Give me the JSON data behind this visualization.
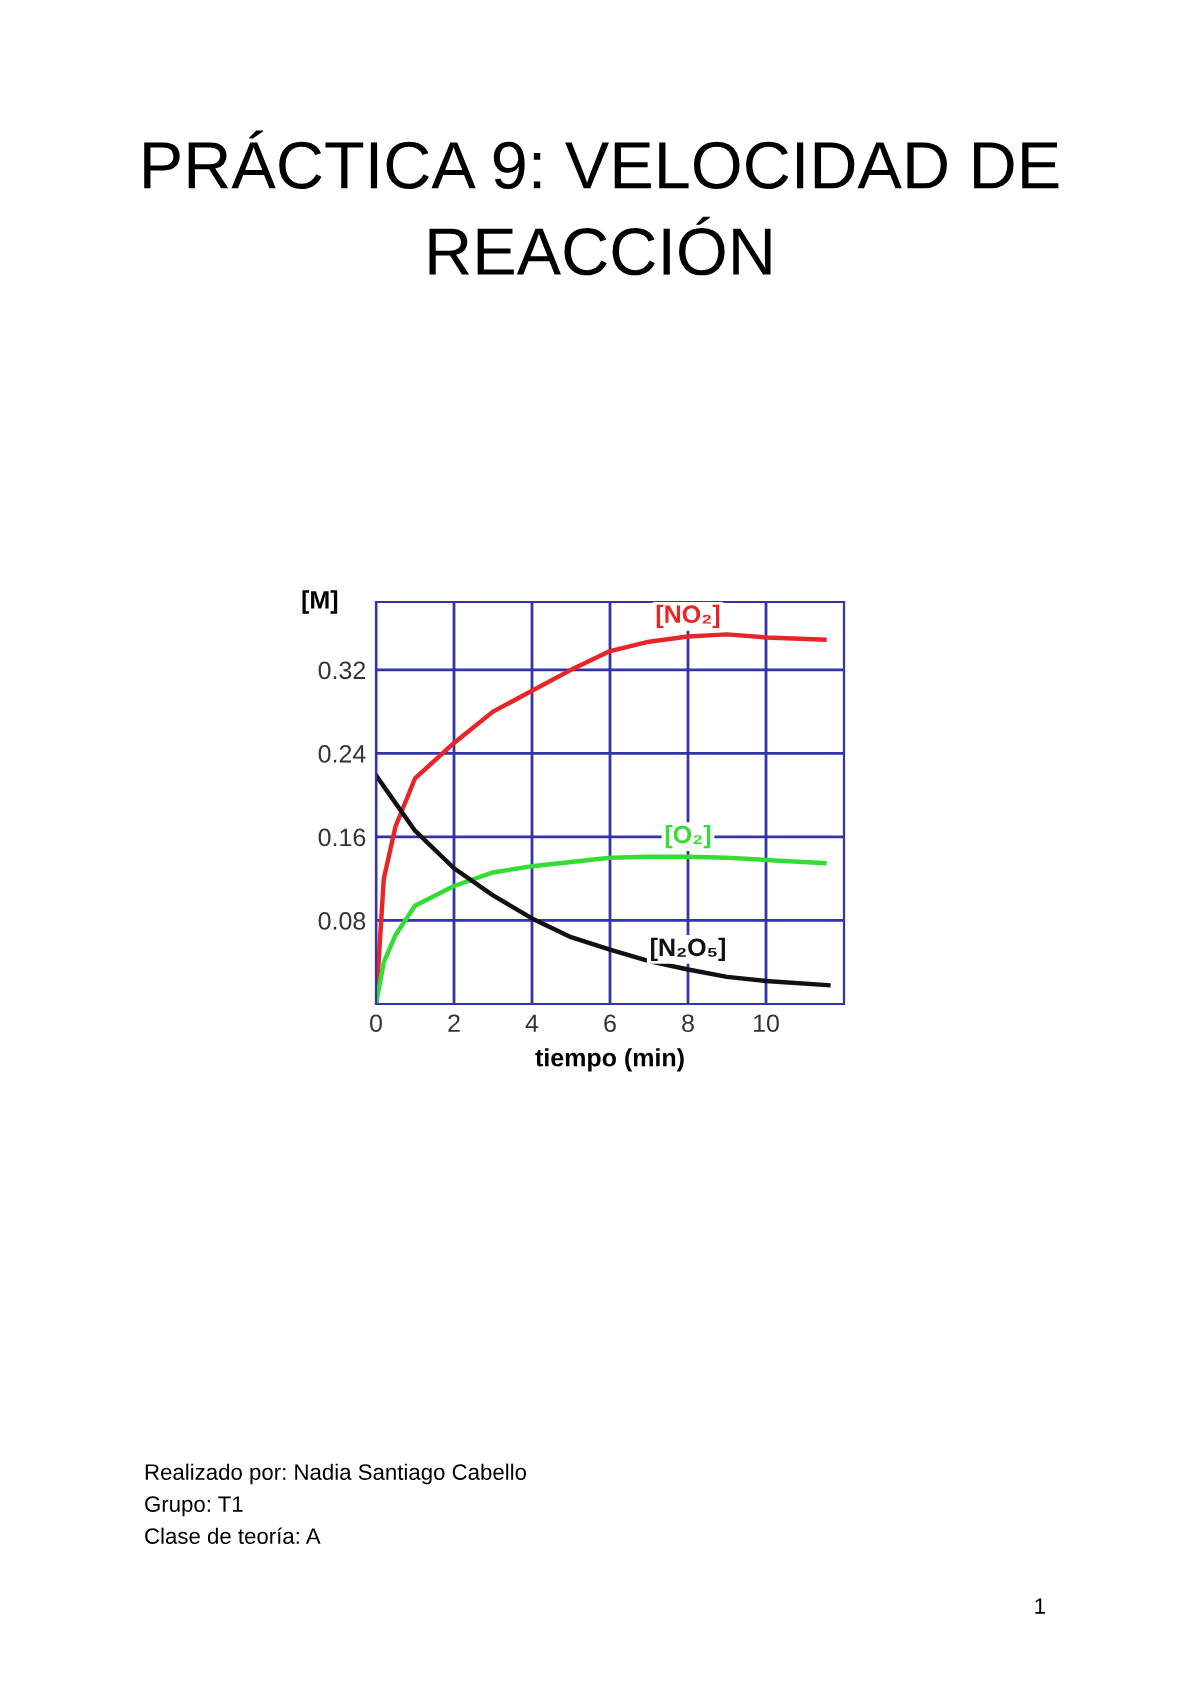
{
  "chart_data": {
    "type": "line",
    "title": "PRÁCTICA 9: VELOCIDAD DE REACCIÓN",
    "xlabel": "tiempo (min)",
    "ylabel": "[M]",
    "xlim": [
      0,
      12
    ],
    "xticks": [
      0,
      2,
      4,
      6,
      8,
      10
    ],
    "ylim": [
      0,
      0.385
    ],
    "yticks": [
      0.08,
      0.16,
      0.24,
      0.32
    ],
    "grid": true,
    "series": [
      {
        "name": "[NO₂]",
        "color": "#e8262a",
        "x": [
          0,
          0.2,
          0.5,
          1,
          2,
          3,
          4,
          5,
          6,
          7,
          8,
          9,
          10,
          11.5
        ],
        "values": [
          0,
          0.12,
          0.17,
          0.216,
          0.25,
          0.28,
          0.3,
          0.32,
          0.338,
          0.347,
          0.352,
          0.354,
          0.351,
          0.349
        ]
      },
      {
        "name": "[O₂]",
        "color": "#33dd33",
        "x": [
          0,
          0.2,
          0.5,
          1,
          2,
          3,
          4,
          5,
          6,
          7,
          8,
          9,
          10,
          11.5
        ],
        "values": [
          0,
          0.04,
          0.066,
          0.094,
          0.113,
          0.126,
          0.132,
          0.136,
          0.14,
          0.141,
          0.141,
          0.14,
          0.138,
          0.135
        ]
      },
      {
        "name": "[N₂O₅]",
        "color": "#111111",
        "x": [
          0,
          1,
          2,
          3,
          4,
          5,
          6,
          7,
          8,
          9,
          10,
          11.6
        ],
        "values": [
          0.219,
          0.166,
          0.13,
          0.104,
          0.082,
          0.064,
          0.052,
          0.041,
          0.033,
          0.026,
          0.022,
          0.018
        ]
      }
    ],
    "annotations": [
      "Realizado por: Nadia Santiago Cabello",
      "Grupo: T1",
      "Clase de teoría: A",
      "1"
    ]
  }
}
